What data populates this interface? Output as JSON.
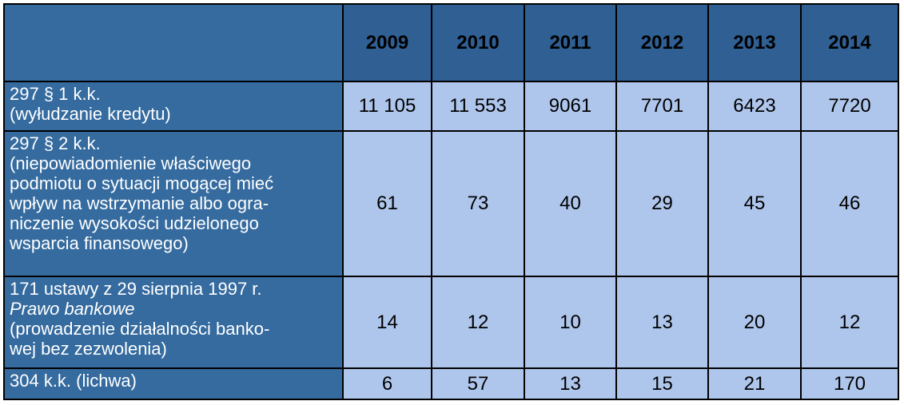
{
  "table": {
    "years": [
      "2009",
      "2010",
      "2011",
      "2012",
      "2013",
      "2014"
    ],
    "rows": [
      {
        "label_lines": [
          "297 § 1 k.k.",
          "(wyłudzanie kredytu)"
        ],
        "values": [
          "11 105",
          "11 553",
          "9061",
          "7701",
          "6423",
          "7720"
        ]
      },
      {
        "label_lines": [
          "297 § 2 k.k.",
          "(niepowiadomienie właściwego",
          "podmiotu o sytuacji mogącej mieć",
          "wpływ na wstrzymanie albo ogra-",
          "niczenie wysokości udzielonego",
          "wsparcia finansowego)"
        ],
        "values": [
          "61",
          "73",
          "40",
          "29",
          "45",
          "46"
        ]
      },
      {
        "label_lines": [
          "171 ustawy z 29 sierpnia 1997 r.",
          "Prawo bankowe",
          "(prowadzenie działalności banko-",
          "wej bez zezwolenia)"
        ],
        "values": [
          "14",
          "12",
          "10",
          "13",
          "20",
          "12"
        ]
      },
      {
        "label_lines": [
          "304 k.k. (lichwa)"
        ],
        "values": [
          "6",
          "57",
          "13",
          "15",
          "21",
          "170"
        ]
      }
    ]
  }
}
